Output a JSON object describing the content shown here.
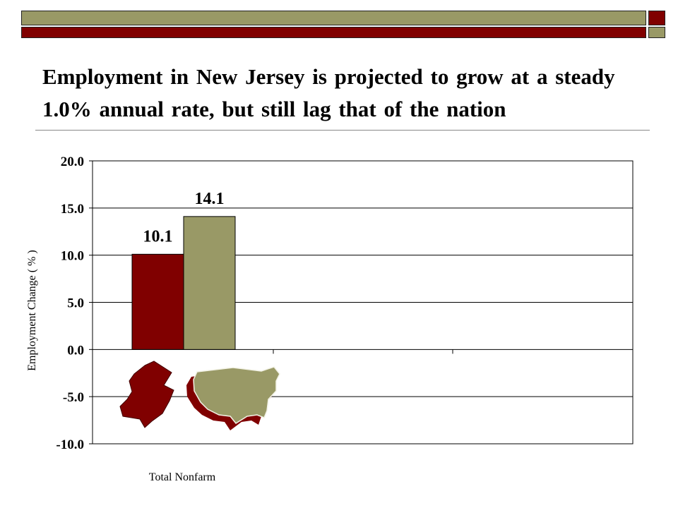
{
  "slide": {
    "title": "Employment in New Jersey is projected to grow at a steady 1.0% annual rate, but still lag that of the nation",
    "colors": {
      "maroon": "#800000",
      "olive": "#999966"
    }
  },
  "chart_data": {
    "type": "bar",
    "categories": [
      "Total Nonfarm"
    ],
    "series": [
      {
        "values": [
          10.1
        ],
        "color": "#800000",
        "icon": "new-jersey-map-icon"
      },
      {
        "values": [
          14.1
        ],
        "color": "#999966",
        "icon": "usa-map-icon"
      }
    ],
    "data_labels": [
      "10.1",
      "14.1"
    ],
    "ylabel": "Employment Change ( % )",
    "xlabel": "",
    "ylim": [
      -10,
      20
    ],
    "yticks": [
      20,
      15,
      10,
      5,
      0,
      -5,
      -10
    ],
    "ytick_labels": [
      "20.0",
      "15.0",
      "10.0",
      "5.0",
      "0.0",
      "-5.0",
      "-10.0"
    ],
    "grid": true,
    "legend": "none"
  }
}
